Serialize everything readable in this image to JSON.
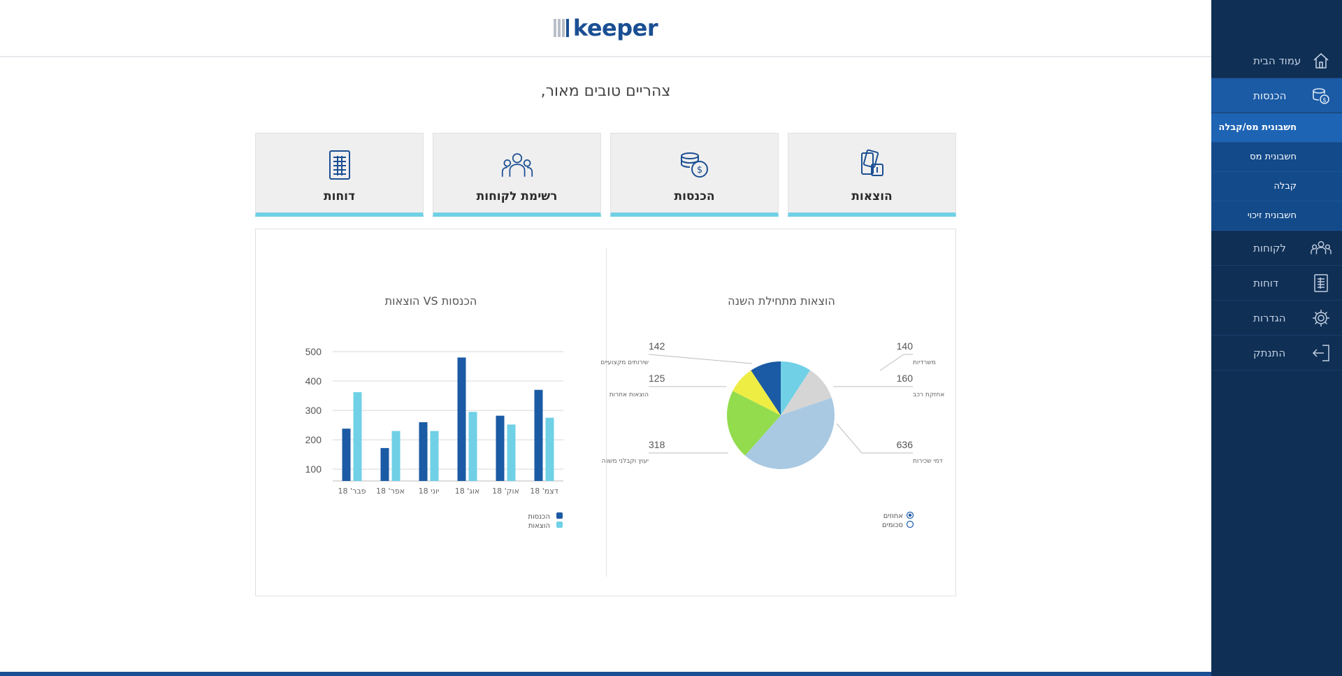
{
  "brand": {
    "logo_text": "keeper",
    "color": "#1b4f93",
    "accent": "#6fd0e6"
  },
  "greeting": "צהריים טובים מאור,",
  "tiles": [
    {
      "label": "הוצאות",
      "icon": "expenses-icon"
    },
    {
      "label": "הכנסות",
      "icon": "income-coins-icon"
    },
    {
      "label": "רשימת לקוחות",
      "icon": "customers-group-icon"
    },
    {
      "label": "דוחות",
      "icon": "report-document-icon"
    }
  ],
  "bar_chart_title": "הכנסות VS הוצאות",
  "pie_chart_title": "הוצאות מתחילת השנה",
  "pie_legend": [
    {
      "label": "אחוזים",
      "selected": true
    },
    {
      "label": "סכומים",
      "selected": false
    }
  ],
  "sidebar": {
    "items": [
      {
        "label": "עמוד הבית",
        "icon": "home-icon",
        "active": false
      },
      {
        "label": "הכנסות",
        "icon": "income-icon",
        "active": true
      },
      {
        "label": "לקוחות",
        "icon": "customers-icon",
        "active": false
      },
      {
        "label": "דוחות",
        "icon": "reports-icon",
        "active": false
      },
      {
        "label": "הגדרות",
        "icon": "settings-gear-icon",
        "active": false
      },
      {
        "label": "התנתק",
        "icon": "logout-icon",
        "active": false
      }
    ],
    "subitems": [
      {
        "label": "חשבונית מס/קבלה",
        "current": true
      },
      {
        "label": "חשבונית מס",
        "current": false
      },
      {
        "label": "קבלה",
        "current": false
      },
      {
        "label": "חשבונית זיכוי",
        "current": false
      }
    ]
  },
  "chart_data": [
    {
      "type": "bar",
      "title": "הכנסות VS הוצאות",
      "categories": [
        "פבר' 18",
        "אפר' 18",
        "יוני 18",
        "אוג' 18",
        "אוק' 18",
        "דצמ' 18"
      ],
      "series": [
        {
          "name": "הכנסות",
          "color": "#1b5aa4",
          "values": [
            238,
            172,
            260,
            480,
            282,
            370
          ]
        },
        {
          "name": "הוצאות",
          "color": "#6fd0e6",
          "values": [
            362,
            230,
            230,
            295,
            252,
            275
          ]
        }
      ],
      "yticks": [
        100,
        200,
        300,
        400,
        500
      ],
      "ylim": [
        60,
        500
      ],
      "grid": true,
      "legend": "bottom-right"
    },
    {
      "type": "pie",
      "title": "הוצאות מתחילת השנה",
      "slices": [
        {
          "label": "משרדיות",
          "value": 140,
          "color": "#6fd0e6"
        },
        {
          "label": "אחזקת רכב",
          "value": 160,
          "color": "#d5d5d5"
        },
        {
          "label": "דמי שכירות",
          "value": 636,
          "color": "#a9c9e2"
        },
        {
          "label": "יעוץ וקבלני משנה",
          "value": 318,
          "color": "#92dc4e"
        },
        {
          "label": "הוצאות אחרות",
          "value": 125,
          "color": "#eded44"
        },
        {
          "label": "שירותים מקצועיים",
          "value": 142,
          "color": "#1b5aa4"
        }
      ]
    }
  ]
}
